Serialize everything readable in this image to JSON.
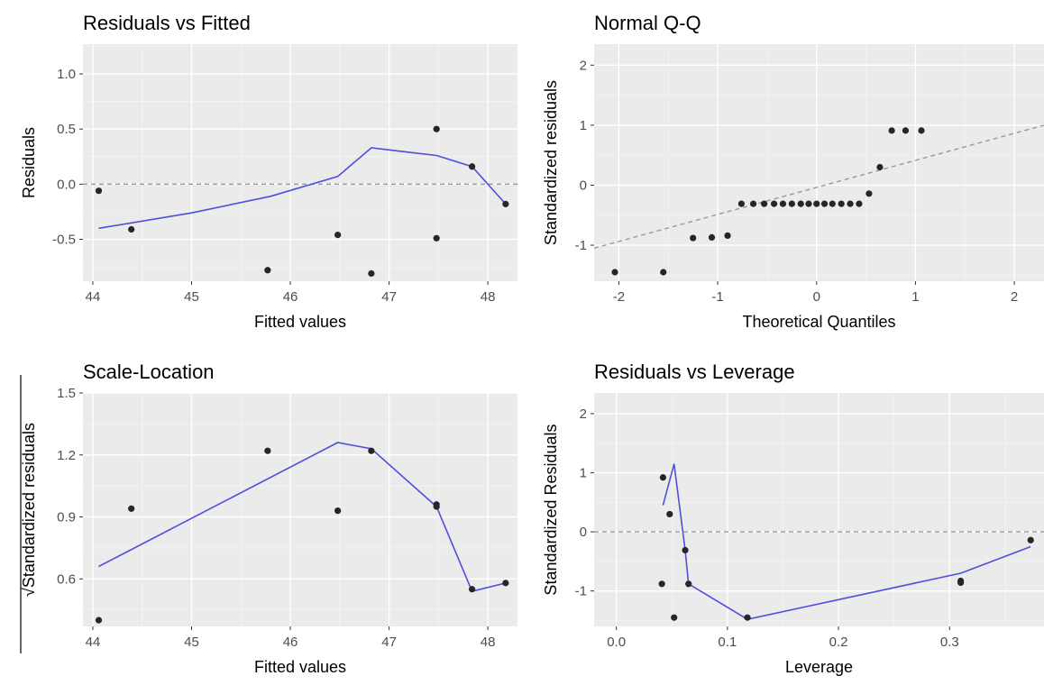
{
  "chart_data": [
    {
      "type": "scatter",
      "title": "Residuals vs Fitted",
      "xlabel": "Fitted values",
      "ylabel": "Residuals",
      "xlim": [
        43.9,
        48.3
      ],
      "ylim": [
        -0.88,
        1.27
      ],
      "xticks": [
        44,
        45,
        46,
        47,
        48
      ],
      "yticks": [
        -0.5,
        0.0,
        0.5,
        1.0
      ],
      "ytick_labels": [
        "-0.5",
        "0.0",
        "0.5",
        "1.0"
      ],
      "grid": true,
      "hline": 0,
      "points": [
        [
          44.06,
          -0.06
        ],
        [
          44.39,
          -0.41
        ],
        [
          45.77,
          -0.78
        ],
        [
          46.48,
          -0.46
        ],
        [
          46.82,
          -0.81
        ],
        [
          47.48,
          0.5
        ],
        [
          47.48,
          -0.49
        ],
        [
          47.84,
          0.16
        ],
        [
          48.18,
          -0.18
        ]
      ],
      "smooth": [
        [
          44.06,
          -0.4
        ],
        [
          45.0,
          -0.26
        ],
        [
          45.8,
          -0.11
        ],
        [
          46.48,
          0.07
        ],
        [
          46.82,
          0.33
        ],
        [
          47.2,
          0.29
        ],
        [
          47.48,
          0.26
        ],
        [
          47.84,
          0.16
        ],
        [
          48.18,
          -0.18
        ]
      ]
    },
    {
      "type": "scatter",
      "title": "Normal Q-Q",
      "xlabel": "Theoretical Quantiles",
      "ylabel": "Standardized residuals",
      "xlim": [
        -2.25,
        2.3
      ],
      "ylim": [
        -1.6,
        2.35
      ],
      "xticks": [
        -2,
        -1,
        0,
        1,
        2
      ],
      "yticks": [
        -1,
        0,
        1,
        2
      ],
      "ytick_labels": [
        "-1",
        "0",
        "1",
        "2"
      ],
      "grid": true,
      "refline": [
        [
          -2.25,
          -1.05
        ],
        [
          2.3,
          1.0
        ]
      ],
      "points": [
        [
          -2.04,
          -1.45
        ],
        [
          -1.55,
          -1.45
        ],
        [
          -1.25,
          -0.88
        ],
        [
          -1.06,
          -0.87
        ],
        [
          -0.9,
          -0.84
        ],
        [
          -0.76,
          -0.31
        ],
        [
          -0.64,
          -0.31
        ],
        [
          -0.53,
          -0.31
        ],
        [
          -0.43,
          -0.31
        ],
        [
          -0.34,
          -0.31
        ],
        [
          -0.25,
          -0.31
        ],
        [
          -0.16,
          -0.31
        ],
        [
          -0.08,
          -0.31
        ],
        [
          0.0,
          -0.31
        ],
        [
          0.08,
          -0.31
        ],
        [
          0.16,
          -0.31
        ],
        [
          0.25,
          -0.31
        ],
        [
          0.34,
          -0.31
        ],
        [
          0.43,
          -0.31
        ],
        [
          0.53,
          -0.14
        ],
        [
          0.64,
          0.3
        ],
        [
          0.76,
          0.91
        ],
        [
          0.9,
          0.91
        ],
        [
          1.06,
          0.91
        ]
      ]
    },
    {
      "type": "scatter",
      "title": "Scale-Location",
      "xlabel": "Fitted values",
      "ylabel": "√Standardized residuals",
      "xlim": [
        43.9,
        48.3
      ],
      "ylim": [
        0.37,
        1.5
      ],
      "xticks": [
        44,
        45,
        46,
        47,
        48
      ],
      "yticks": [
        0.6,
        0.9,
        1.2,
        1.5
      ],
      "ytick_labels": [
        "0.6",
        "0.9",
        "1.2",
        "1.5"
      ],
      "grid": true,
      "points": [
        [
          44.06,
          0.4
        ],
        [
          44.39,
          0.94
        ],
        [
          45.77,
          1.22
        ],
        [
          46.48,
          0.93
        ],
        [
          46.82,
          1.22
        ],
        [
          47.48,
          0.96
        ],
        [
          47.48,
          0.95
        ],
        [
          47.84,
          0.55
        ],
        [
          48.18,
          0.58
        ]
      ],
      "smooth": [
        [
          44.06,
          0.66
        ],
        [
          46.48,
          1.26
        ],
        [
          46.82,
          1.23
        ],
        [
          47.48,
          0.95
        ],
        [
          47.84,
          0.54
        ],
        [
          48.18,
          0.58
        ]
      ]
    },
    {
      "type": "scatter",
      "title": "Residuals vs Leverage",
      "xlabel": "Leverage",
      "ylabel": "Standardized Residuals",
      "xlim": [
        -0.02,
        0.385
      ],
      "ylim": [
        -1.6,
        2.35
      ],
      "xticks": [
        0.0,
        0.1,
        0.2,
        0.3
      ],
      "xtick_labels": [
        "0.0",
        "0.1",
        "0.2",
        "0.3"
      ],
      "yticks": [
        -1,
        0,
        1,
        2
      ],
      "ytick_labels": [
        "-1",
        "0",
        "1",
        "2"
      ],
      "grid": true,
      "hline": 0,
      "points": [
        [
          0.042,
          0.92
        ],
        [
          0.048,
          0.3
        ],
        [
          0.062,
          -0.31
        ],
        [
          0.065,
          -0.88
        ],
        [
          0.041,
          -0.88
        ],
        [
          0.052,
          -1.45
        ],
        [
          0.118,
          -1.45
        ],
        [
          0.31,
          -0.83
        ],
        [
          0.31,
          -0.86
        ],
        [
          0.373,
          -0.14
        ]
      ],
      "smooth": [
        [
          0.042,
          0.45
        ],
        [
          0.052,
          1.15
        ],
        [
          0.062,
          -0.31
        ],
        [
          0.065,
          -0.88
        ],
        [
          0.118,
          -1.48
        ],
        [
          0.31,
          -0.7
        ],
        [
          0.373,
          -0.25
        ]
      ]
    }
  ]
}
